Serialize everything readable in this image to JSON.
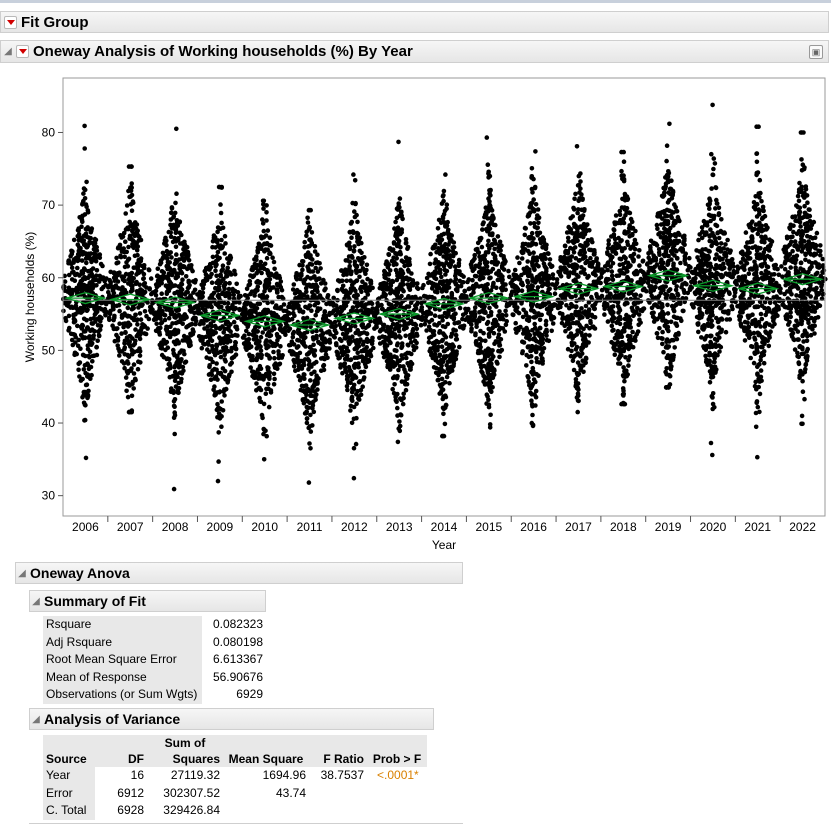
{
  "fit_group": {
    "title": "Fit Group"
  },
  "oneway": {
    "title": "Oneway Analysis of Working households (%) By Year"
  },
  "chart_data": {
    "type": "scatter",
    "xlabel": "Year",
    "ylabel": "Working households (%)",
    "categories": [
      "2006",
      "2007",
      "2008",
      "2009",
      "2010",
      "2011",
      "2012",
      "2013",
      "2014",
      "2015",
      "2016",
      "2017",
      "2018",
      "2019",
      "2020",
      "2021",
      "2022"
    ],
    "y_ticks": [
      30,
      40,
      50,
      60,
      70,
      80
    ],
    "ylim": [
      27.2,
      87.5
    ],
    "grand_mean": 56.9,
    "means": [
      57.2,
      57.0,
      56.6,
      54.8,
      54.0,
      53.5,
      54.4,
      55.0,
      56.4,
      57.2,
      57.4,
      58.5,
      58.8,
      60.3,
      58.9,
      58.5,
      59.8
    ],
    "mins": [
      35.2,
      41.5,
      30.9,
      32.0,
      35.0,
      31.8,
      32.4,
      37.4,
      38.2,
      39.4,
      39.6,
      41.5,
      42.6,
      44.9,
      35.6,
      35.3,
      39.9
    ],
    "maxs": [
      80.9,
      75.3,
      80.5,
      72.5,
      70.6,
      69.3,
      74.2,
      78.7,
      74.2,
      79.3,
      77.4,
      78.1,
      77.3,
      81.2,
      83.8,
      80.8,
      80.0
    ],
    "counts": [
      410,
      370,
      430,
      400,
      400,
      400,
      410,
      420,
      410,
      410,
      420,
      400,
      400,
      390,
      420,
      400,
      420
    ],
    "marker_color": "#000000",
    "mean_diamond_color": "#0a9a2a",
    "grand_mean_line_color": "#808080"
  },
  "oneway_anova": {
    "title": "Oneway Anova"
  },
  "summary_of_fit": {
    "title": "Summary of Fit",
    "rows": [
      {
        "label": "Rsquare",
        "value": "0.082323"
      },
      {
        "label": "Adj Rsquare",
        "value": "0.080198"
      },
      {
        "label": "Root Mean Square Error",
        "value": "6.613367"
      },
      {
        "label": "Mean of Response",
        "value": "56.90676"
      },
      {
        "label": "Observations (or Sum Wgts)",
        "value": "6929"
      }
    ]
  },
  "analysis_of_variance": {
    "title": "Analysis of Variance",
    "headers": {
      "source": "Source",
      "df": "DF",
      "ss_line1": "Sum of",
      "ss_line2": "Squares",
      "ms": "Mean Square",
      "f": "F Ratio",
      "p": "Prob > F"
    },
    "rows": [
      {
        "source": "Year",
        "df": "16",
        "ss": "27119.32",
        "ms": "1694.96",
        "f": "38.7537",
        "p": "<.0001*"
      },
      {
        "source": "Error",
        "df": "6912",
        "ss": "302307.52",
        "ms": "43.74",
        "f": "",
        "p": ""
      },
      {
        "source": "C. Total",
        "df": "6928",
        "ss": "329426.84",
        "ms": "",
        "f": "",
        "p": ""
      }
    ]
  }
}
